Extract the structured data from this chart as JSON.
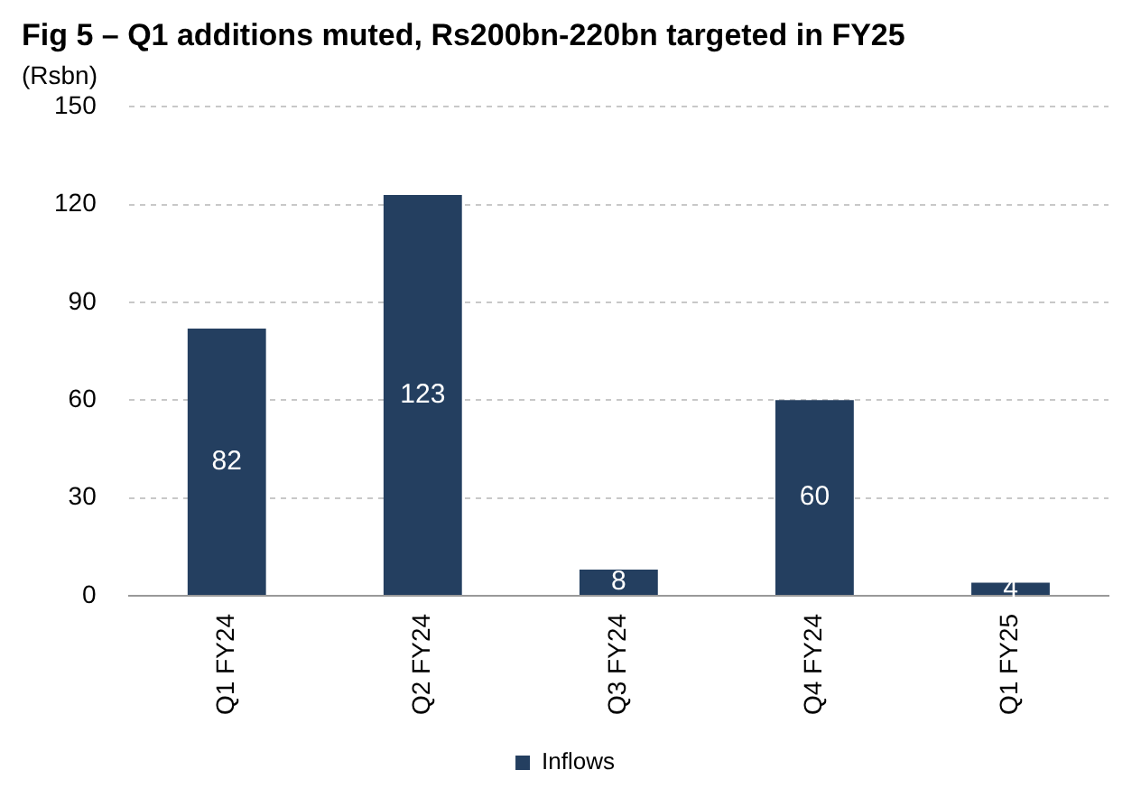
{
  "chart_data": {
    "type": "bar",
    "title": "Fig 5 – Q1 additions muted, Rs200bn-220bn targeted in FY25",
    "ylabel": "(Rsbn)",
    "categories": [
      "Q1 FY24",
      "Q2 FY24",
      "Q3 FY24",
      "Q4 FY24",
      "Q1 FY25"
    ],
    "series": [
      {
        "name": "Inflows",
        "color": "#243f60",
        "values": [
          82,
          123,
          8,
          60,
          4
        ]
      }
    ],
    "ylim": [
      0,
      150
    ],
    "yticks": [
      0,
      30,
      60,
      90,
      120,
      150
    ],
    "grid": "y",
    "legend": "bottom",
    "data_labels": true
  }
}
